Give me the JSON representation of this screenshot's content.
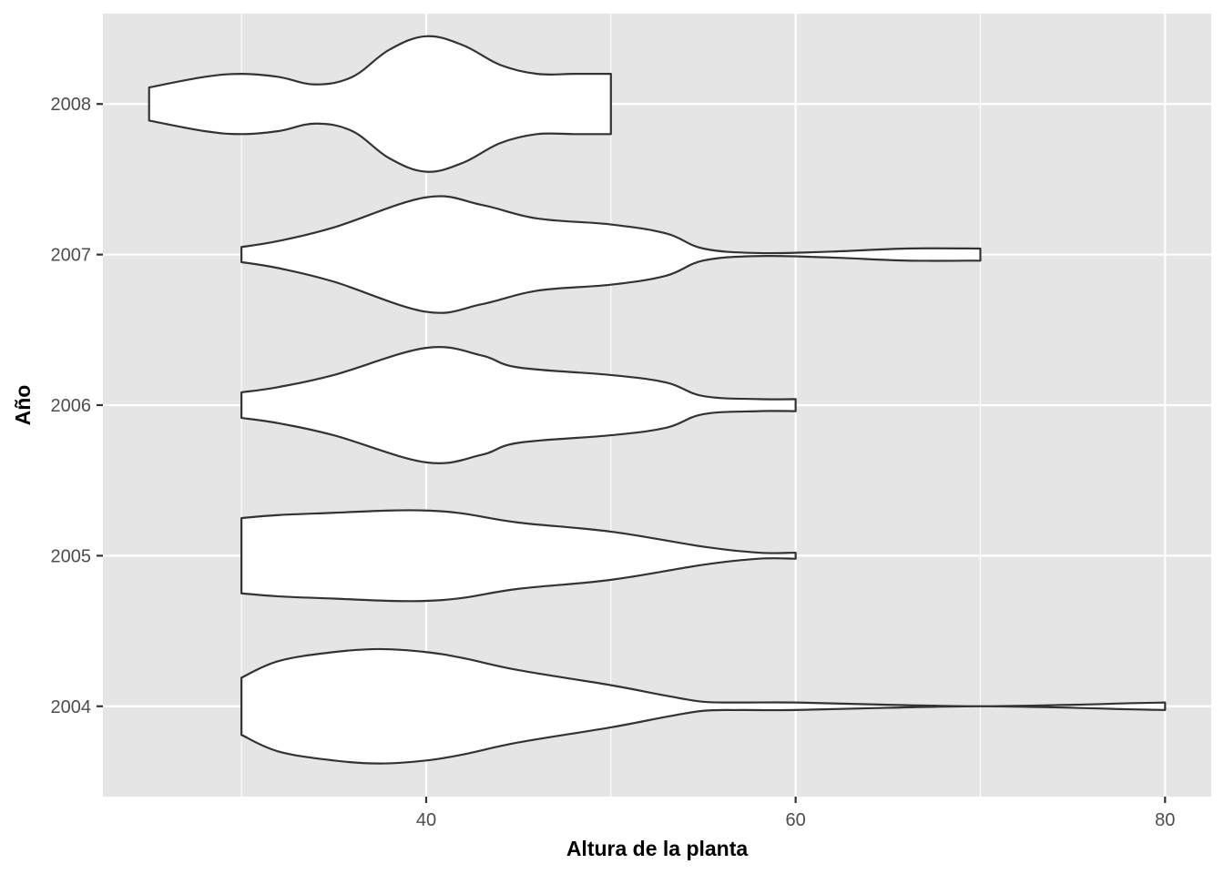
{
  "chart_data": {
    "type": "violin",
    "orientation": "horizontal",
    "title": "",
    "xlabel": "Altura de la planta",
    "ylabel": "Año",
    "xlim": [
      22.5,
      82.5
    ],
    "x_ticks": [
      40,
      60,
      80
    ],
    "x_minor_ticks": [
      30,
      50,
      70
    ],
    "categories": [
      "2004",
      "2005",
      "2006",
      "2007",
      "2008"
    ],
    "grid": true,
    "series": [
      {
        "category": "2004",
        "profile": [
          [
            30,
            0.19
          ],
          [
            32,
            0.3
          ],
          [
            35,
            0.36
          ],
          [
            37.5,
            0.38
          ],
          [
            40,
            0.36
          ],
          [
            42,
            0.32
          ],
          [
            45,
            0.24
          ],
          [
            50,
            0.14
          ],
          [
            53,
            0.07
          ],
          [
            55,
            0.03
          ],
          [
            57,
            0.025
          ],
          [
            60,
            0.025
          ],
          [
            65,
            0.01
          ],
          [
            70,
            0.0
          ],
          [
            75,
            0.01
          ],
          [
            78,
            0.02
          ],
          [
            80,
            0.025
          ]
        ]
      },
      {
        "category": "2005",
        "profile": [
          [
            30,
            0.25
          ],
          [
            32,
            0.27
          ],
          [
            35,
            0.285
          ],
          [
            38,
            0.3
          ],
          [
            40,
            0.3
          ],
          [
            42,
            0.28
          ],
          [
            45,
            0.22
          ],
          [
            50,
            0.16
          ],
          [
            55,
            0.06
          ],
          [
            58,
            0.02
          ],
          [
            60,
            0.02
          ]
        ]
      },
      {
        "category": "2006",
        "profile": [
          [
            30,
            0.085
          ],
          [
            32,
            0.12
          ],
          [
            35,
            0.2
          ],
          [
            40,
            0.38
          ],
          [
            43,
            0.33
          ],
          [
            45,
            0.25
          ],
          [
            50,
            0.2
          ],
          [
            53,
            0.15
          ],
          [
            55,
            0.06
          ],
          [
            58,
            0.04
          ],
          [
            60,
            0.04
          ]
        ]
      },
      {
        "category": "2007",
        "profile": [
          [
            30,
            0.05
          ],
          [
            32,
            0.09
          ],
          [
            35,
            0.18
          ],
          [
            40,
            0.38
          ],
          [
            43,
            0.33
          ],
          [
            46,
            0.24
          ],
          [
            50,
            0.2
          ],
          [
            53,
            0.14
          ],
          [
            55,
            0.04
          ],
          [
            58,
            0.01
          ],
          [
            62,
            0.02
          ],
          [
            66,
            0.04
          ],
          [
            70,
            0.04
          ]
        ]
      },
      {
        "category": "2008",
        "profile": [
          [
            25,
            0.11
          ],
          [
            28,
            0.18
          ],
          [
            30,
            0.2
          ],
          [
            32,
            0.18
          ],
          [
            34,
            0.13
          ],
          [
            36,
            0.18
          ],
          [
            38,
            0.36
          ],
          [
            40,
            0.45
          ],
          [
            42,
            0.39
          ],
          [
            44,
            0.26
          ],
          [
            46,
            0.2
          ],
          [
            48,
            0.2
          ],
          [
            50,
            0.2
          ]
        ]
      }
    ]
  }
}
